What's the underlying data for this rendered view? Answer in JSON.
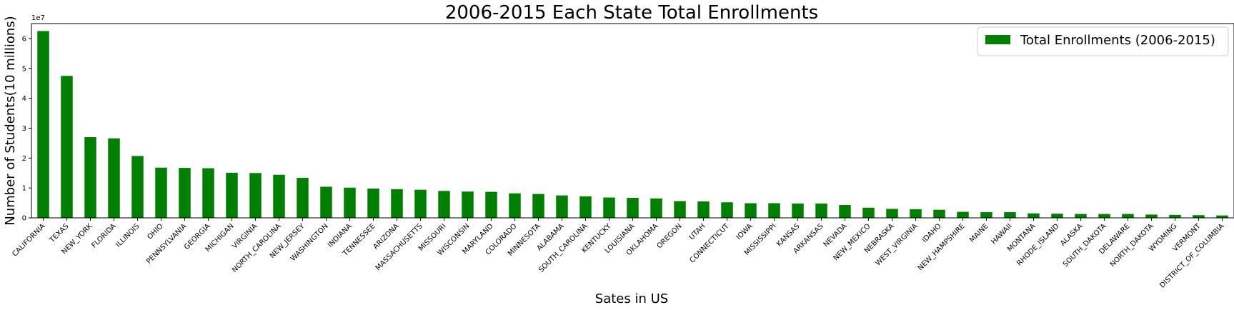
{
  "chart_data": {
    "type": "bar",
    "title": "2006-2015 Each State Total Enrollments",
    "xlabel": "Sates in US",
    "ylabel": "Number of Students(10 millions)",
    "y_offset_label": "1e7",
    "y_scale": 10000000,
    "ylim": [
      0,
      6.5
    ],
    "yticks": [
      "0",
      "1",
      "2",
      "3",
      "4",
      "5",
      "6"
    ],
    "grid": false,
    "legend_position": "top-right",
    "bar_color": "#008000",
    "series": [
      {
        "name": "Total Enrollments (2006-2015)",
        "values": [
          6.25,
          4.75,
          2.7,
          2.66,
          2.07,
          1.68,
          1.67,
          1.66,
          1.51,
          1.5,
          1.44,
          1.34,
          1.04,
          1.01,
          0.98,
          0.96,
          0.94,
          0.9,
          0.88,
          0.87,
          0.82,
          0.8,
          0.75,
          0.72,
          0.68,
          0.67,
          0.65,
          0.56,
          0.55,
          0.52,
          0.49,
          0.49,
          0.48,
          0.48,
          0.43,
          0.34,
          0.3,
          0.29,
          0.27,
          0.2,
          0.19,
          0.19,
          0.15,
          0.14,
          0.13,
          0.13,
          0.13,
          0.11,
          0.1,
          0.09,
          0.08
        ]
      }
    ],
    "categories": [
      "CALIFORNIA",
      "TEXAS",
      "NEW_YORK",
      "FLORIDA",
      "ILLINOIS",
      "OHIO",
      "PENNSYLVANIA",
      "GEORGIA",
      "MICHIGAN",
      "VIRGINIA",
      "NORTH_CAROLINA",
      "NEW_JERSEY",
      "WASHINGTON",
      "INDIANA",
      "TENNESSEE",
      "ARIZONA",
      "MASSACHUSETTS",
      "MISSOURI",
      "WISCONSIN",
      "MARYLAND",
      "COLORADO",
      "MINNESOTA",
      "ALABAMA",
      "SOUTH_CAROLINA",
      "KENTUCKY",
      "LOUISIANA",
      "OKLAHOMA",
      "OREGON",
      "UTAH",
      "CONNECTICUT",
      "IOWA",
      "MISSISSIPPI",
      "KANSAS",
      "ARKANSAS",
      "NEVADA",
      "NEW_MEXICO",
      "NEBRASKA",
      "WEST_VIRGINIA",
      "IDAHO",
      "NEW_HAMPSHIRE",
      "MAINE",
      "HAWAII",
      "MONTANA",
      "RHODE_ISLAND",
      "ALASKA",
      "SOUTH_DAKOTA",
      "DELAWARE",
      "NORTH_DAKOTA",
      "WYOMING",
      "VERMONT",
      "DISTRICT_OF_COLUMBIA"
    ]
  }
}
